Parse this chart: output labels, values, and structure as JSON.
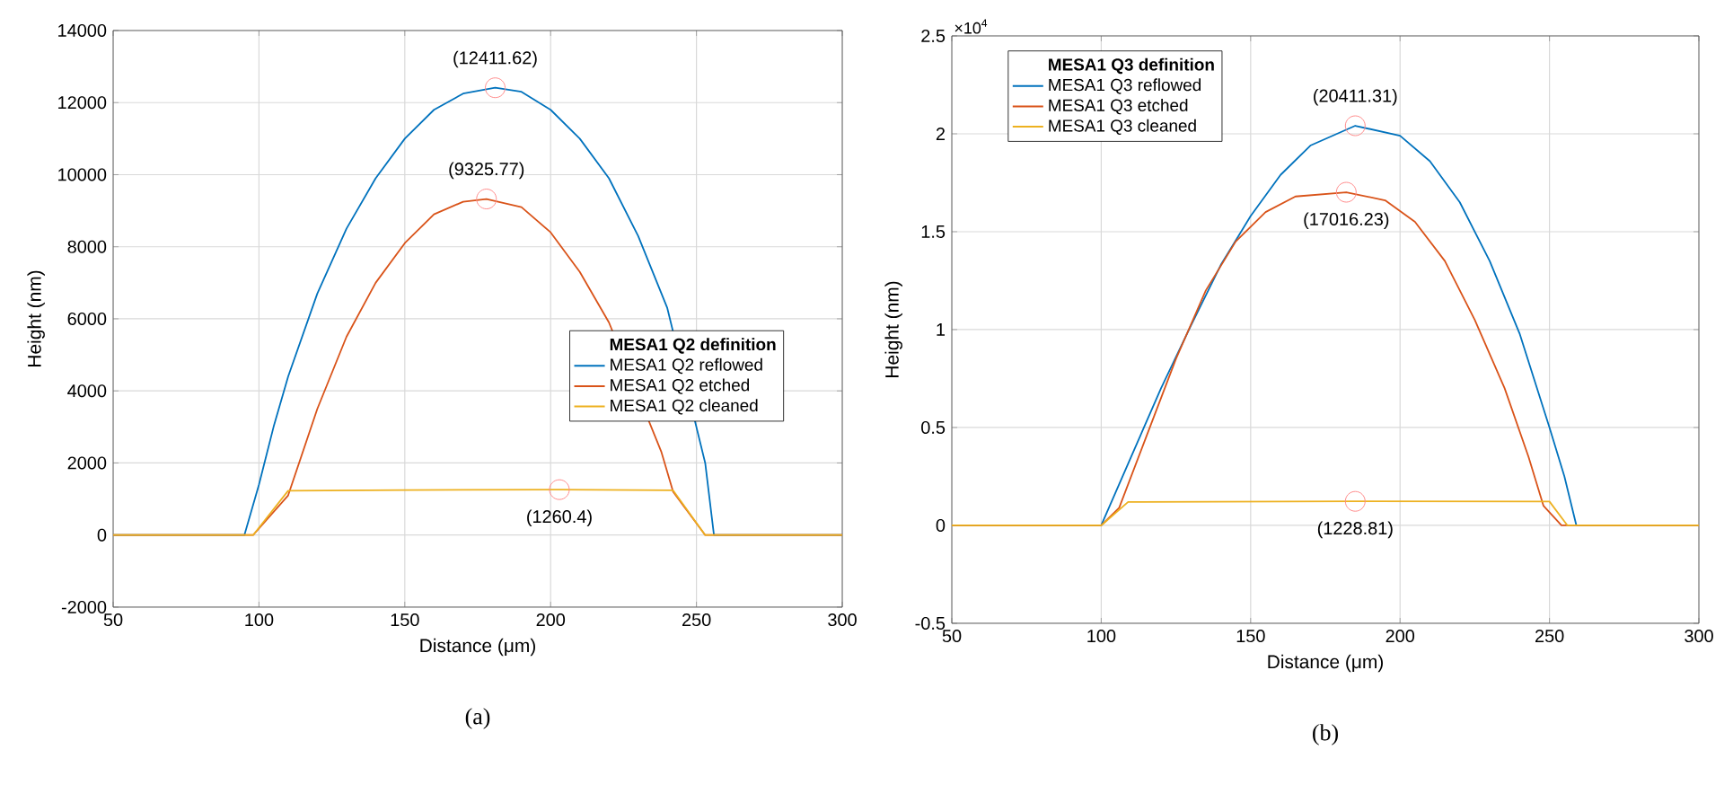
{
  "chart_data": [
    {
      "type": "line",
      "xlabel": "Distance (μm)",
      "ylabel": "Height (nm)",
      "legend_title": "MESA1 Q2 definition",
      "legend": "right",
      "grid": true,
      "xlim": [
        50,
        300
      ],
      "ylim": [
        -2000,
        14000
      ],
      "xticks": [
        50,
        100,
        150,
        200,
        250,
        300
      ],
      "yticks": [
        -2000,
        0,
        2000,
        4000,
        6000,
        8000,
        10000,
        12000,
        14000
      ],
      "series": [
        {
          "name": "MESA1 Q2 reflowed",
          "color": "#0072bd",
          "x": [
            50,
            95,
            100,
            105,
            110,
            120,
            130,
            140,
            150,
            160,
            170,
            181,
            190,
            200,
            210,
            220,
            230,
            240,
            245,
            250,
            253,
            256,
            300
          ],
          "values": [
            0,
            0,
            1400,
            3000,
            4400,
            6700,
            8500,
            9900,
            11000,
            11800,
            12250,
            12411.62,
            12300,
            11800,
            11000,
            9900,
            8300,
            6300,
            null,
            null,
            2000,
            0,
            0
          ]
        },
        {
          "name": "MESA1 Q2 etched",
          "color": "#d95319",
          "x": [
            50,
            98,
            110,
            120,
            130,
            140,
            150,
            160,
            170,
            178,
            190,
            200,
            210,
            220,
            230,
            238,
            242,
            253,
            300
          ],
          "values": [
            0,
            0,
            1100,
            3500,
            5500,
            7000,
            8100,
            8900,
            9250,
            9325.77,
            9100,
            8400,
            7300,
            5900,
            null,
            2300,
            1200,
            0,
            0
          ]
        },
        {
          "name": "MESA1 Q2 cleaned",
          "color": "#edb120",
          "x": [
            50,
            98,
            110,
            150,
            203,
            242,
            253,
            300
          ],
          "values": [
            0,
            0,
            1230,
            1250,
            1260.4,
            1240,
            0,
            0
          ]
        }
      ],
      "annotations": [
        {
          "text": "(12411.62)",
          "x": 181,
          "y": 12411.62
        },
        {
          "text": "(9325.77)",
          "x": 178,
          "y": 9325.77
        },
        {
          "text": "(1260.4)",
          "x": 203,
          "y": 1260.4
        },
        "(a)"
      ]
    },
    {
      "type": "line",
      "xlabel": "Distance (μm)",
      "ylabel": "Height (nm)",
      "legend_title": "MESA1 Q3 definition",
      "legend": "top left",
      "grid": true,
      "xlim": [
        50,
        300
      ],
      "ylim": [
        -0.5,
        2.5
      ],
      "xticks": [
        50,
        100,
        150,
        200,
        250,
        300
      ],
      "yticks": [
        -0.5,
        0,
        0.5,
        1,
        1.5,
        2,
        2.5
      ],
      "series": [
        {
          "name": "MESA1 Q3 reflowed",
          "color": "#0072bd",
          "x": [
            50,
            100,
            110,
            120,
            130,
            140,
            150,
            160,
            170,
            185,
            200,
            210,
            220,
            230,
            240,
            250,
            255,
            259,
            300
          ],
          "values": [
            0,
            0,
            0.35,
            0.7,
            1.02,
            1.33,
            1.58,
            1.79,
            1.94,
            2.041131,
            1.99,
            1.86,
            1.65,
            1.35,
            0.98,
            0.5,
            0.25,
            0,
            0
          ]
        },
        {
          "name": "MESA1 Q3 etched",
          "color": "#d95319",
          "x": [
            50,
            100,
            106,
            115,
            125,
            135,
            145,
            155,
            165,
            182,
            195,
            205,
            215,
            225,
            235,
            243,
            248,
            254,
            300
          ],
          "values": [
            0,
            0,
            0.09,
            0.45,
            0.85,
            1.2,
            1.45,
            1.6,
            1.68,
            1.701623,
            1.66,
            1.55,
            1.35,
            1.05,
            0.7,
            0.35,
            0.1,
            0,
            0
          ]
        },
        {
          "name": "MESA1 Q3 cleaned",
          "color": "#edb120",
          "x": [
            50,
            100,
            109,
            185,
            250,
            256,
            300
          ],
          "values": [
            0,
            0,
            0.12,
            0.122881,
            0.122,
            0,
            0
          ]
        }
      ],
      "annotations": [
        {
          "text": "(20411.31)",
          "x": 185,
          "y": 2.041131
        },
        {
          "text": "(17016.23)",
          "x": 182,
          "y": 1.701623
        },
        {
          "text": "(1228.81)",
          "x": 185,
          "y": 0.122881
        },
        "×10$^{4}$",
        "(b)"
      ]
    }
  ]
}
